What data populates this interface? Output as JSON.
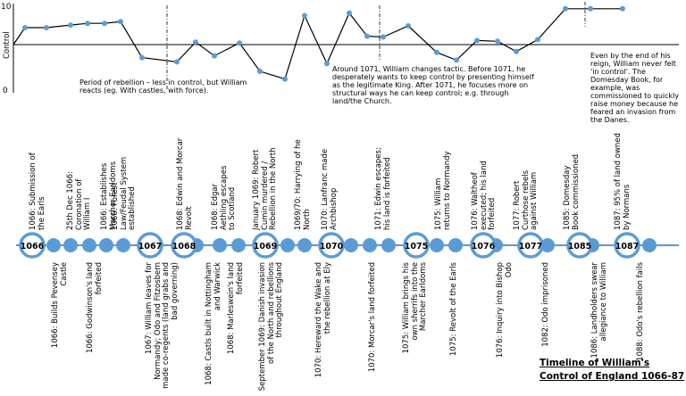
{
  "chart_data": {
    "type": "line",
    "ylabel": "Control",
    "yticks": [
      "10",
      "0"
    ],
    "ylim": [
      0,
      10
    ],
    "midline": 5,
    "values": [
      7.4,
      7.4,
      7.7,
      7.9,
      7.9,
      8.1,
      3.9,
      3.4,
      5.7,
      4.1,
      5.6,
      2.3,
      1.4,
      8.8,
      3.2,
      9.1,
      6.4,
      6.3,
      7.6,
      4.5,
      3.6,
      5.9,
      5.8,
      4.6,
      6.0,
      9.6,
      9.6,
      9.6
    ]
  },
  "annotations": {
    "rebellion": "Period of rebellion – less in control, but William reacts (eg. With castles, with force).",
    "tactic": "Around 1071, William changes tactic. Before 1071, he desperately wants to keep control by presenting himself as the legitimate King. After 1071, he focuses more on structural ways he can keep control; e.g. through land/the Church.",
    "end": "Even by the end of his reign, William never felt 'in control'. The Domesday Book, for example, was commissioned to quickly raise money because he feared an invasion from the Danes."
  },
  "years": [
    "1066",
    "1067",
    "1068",
    "1069",
    "1070",
    "1075",
    "1076",
    "1077",
    "1085",
    "1087"
  ],
  "events_above": [
    "1066: Submission of the Earls",
    "25th Dec 1066: Coronation of William I",
    "1066: Establishes Marcher Earldoms",
    "1066: Forest Law/Feudal System established",
    "1068: Edwin and Morcar Revolt",
    "1068: Edgar Aethling escapes to Scotland",
    "January 1069: Robert Cumin murdered / Rebellion in the North",
    "1069/70: Harrying of he North",
    "1070: Lanfranc made Archbishop",
    "1071: Edwin escapes; his land is forfeited",
    "1075: William returns to Normandy",
    "1076: Waltheof executed; his land forfeited",
    "1077: Robert Curthose rebels against William",
    "1085: Domesday Book commissioned",
    "1087: 95% of land owned by Normans"
  ],
  "events_below": [
    "1066: Builds Pevensey Castle",
    "1066: Godwinson's land forfeited",
    "1067: William leaves for Normandy; Odo and Fitzosbern made co-regents (land grabs and bad governing)",
    "1068: Castls built in Nottingham and Warwick",
    "1068: Marleswein's land forfeited",
    "September 1069: Danish invasion of the North and rebellions throughout England",
    "1070: Hereward the Wake and the rebellion at Ely",
    "1070: Morcar's land forfeited",
    "1075: William brings his own sherrifs into the Marcher Earldoms",
    "1075: Revolt of the Earls",
    "1076: Inquiry into Bishop Odo",
    "1082: Odo imprisoned",
    "1086: Landholders swear allegiance to William",
    "1088: Odo's rebellion fails"
  ],
  "title_line1": "Timeline of William's",
  "title_line2": "Control of England 1066-87",
  "colors": {
    "dot": "#5b9bd5",
    "ring": "#5b9bd5",
    "line": "#000000"
  }
}
